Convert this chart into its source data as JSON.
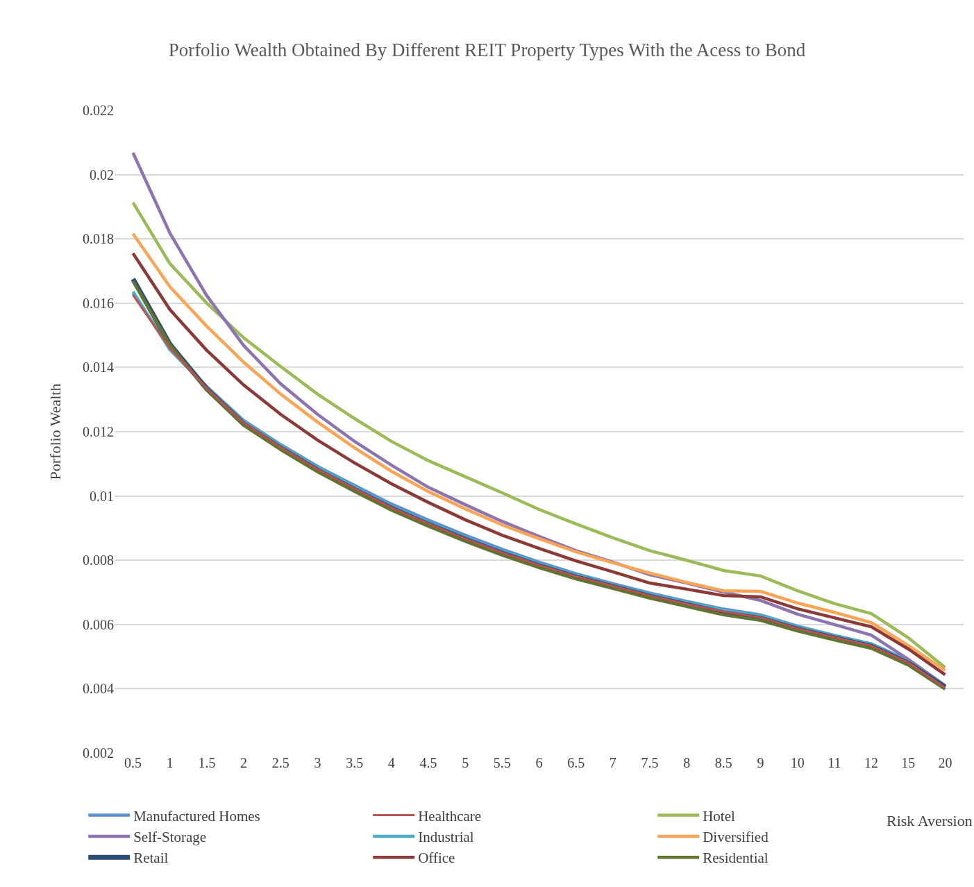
{
  "chart_data": {
    "type": "line",
    "title": "Porfolio Wealth Obtained By Different REIT Property Types With the Acess to Bond",
    "xlabel": "Risk Aversion",
    "ylabel": "Porfolio Wealth",
    "categories": [
      "0.5",
      "1",
      "1.5",
      "2",
      "2.5",
      "3",
      "3.5",
      "4",
      "4.5",
      "5",
      "5.5",
      "6",
      "6.5",
      "7",
      "7.5",
      "8",
      "8.5",
      "9",
      "10",
      "11",
      "12",
      "15",
      "20"
    ],
    "series": [
      {
        "name": "Manufactured Homes",
        "color": "#5b8fd0",
        "values": [
          0.0163,
          0.0146,
          0.0134,
          0.01235,
          0.0116,
          0.01092,
          0.01033,
          0.00975,
          0.00925,
          0.00878,
          0.00834,
          0.00794,
          0.00758,
          0.00727,
          0.00698,
          0.00672,
          0.00648,
          0.0063,
          0.00595,
          0.00566,
          0.0054,
          0.00488,
          0.0041
        ]
      },
      {
        "name": "Healthcare",
        "color": "#c0504d",
        "values": [
          0.01625,
          0.0146,
          0.01335,
          0.01228,
          0.01152,
          0.01083,
          0.01023,
          0.00964,
          0.00914,
          0.00867,
          0.00824,
          0.00785,
          0.0075,
          0.0072,
          0.0069,
          0.00664,
          0.0064,
          0.00622,
          0.00588,
          0.0056,
          0.00534,
          0.00482,
          0.00403
        ]
      },
      {
        "name": "Hotel",
        "color": "#9bbb59",
        "values": [
          0.01913,
          0.01723,
          0.016,
          0.01492,
          0.01403,
          0.01317,
          0.01241,
          0.0117,
          0.0111,
          0.0106,
          0.0101,
          0.00958,
          0.00913,
          0.0087,
          0.0083,
          0.008,
          0.00768,
          0.00751,
          0.00705,
          0.00665,
          0.00634,
          0.00559,
          0.00466
        ]
      },
      {
        "name": "Self-Storage",
        "color": "#8c74b0",
        "values": [
          0.02068,
          0.01818,
          0.01623,
          0.01468,
          0.01349,
          0.01254,
          0.0117,
          0.01096,
          0.01027,
          0.00973,
          0.00921,
          0.00874,
          0.0083,
          0.00794,
          0.00755,
          0.00729,
          0.00701,
          0.00675,
          0.00632,
          0.006,
          0.00567,
          0.00492,
          0.0041
        ]
      },
      {
        "name": "Industrial",
        "color": "#4bacc6",
        "values": [
          0.01636,
          0.01455,
          0.01338,
          0.01232,
          0.01157,
          0.01088,
          0.01028,
          0.00968,
          0.00918,
          0.00871,
          0.00828,
          0.00789,
          0.00754,
          0.00723,
          0.00694,
          0.00668,
          0.00644,
          0.00627,
          0.00592,
          0.00564,
          0.00538,
          0.00485,
          0.00408
        ]
      },
      {
        "name": "Diversified",
        "color": "#f9a555",
        "values": [
          0.01816,
          0.01651,
          0.01528,
          0.01416,
          0.01317,
          0.0123,
          0.0115,
          0.01077,
          0.01014,
          0.0096,
          0.0091,
          0.00867,
          0.00826,
          0.00792,
          0.0076,
          0.00731,
          0.00705,
          0.00703,
          0.00667,
          0.00638,
          0.00606,
          0.00535,
          0.00457
        ]
      },
      {
        "name": "Retail",
        "color": "#2c4d75",
        "values": [
          0.01675,
          0.01472,
          0.01333,
          0.01224,
          0.01149,
          0.0108,
          0.0102,
          0.00962,
          0.00912,
          0.00865,
          0.00822,
          0.00783,
          0.00748,
          0.00718,
          0.00688,
          0.00662,
          0.00636,
          0.00619,
          0.00586,
          0.00558,
          0.00532,
          0.0048,
          0.00405
        ]
      },
      {
        "name": "Office",
        "color": "#8b3a37",
        "values": [
          0.01755,
          0.0158,
          0.01453,
          0.01345,
          0.01254,
          0.01174,
          0.01103,
          0.01038,
          0.0098,
          0.00926,
          0.00878,
          0.00837,
          0.00798,
          0.00764,
          0.00729,
          0.0071,
          0.0069,
          0.00686,
          0.00649,
          0.00621,
          0.00593,
          0.00524,
          0.00444
        ]
      },
      {
        "name": "Residential",
        "color": "#5f7530",
        "values": [
          0.01669,
          0.0147,
          0.0133,
          0.0122,
          0.01144,
          0.01075,
          0.01014,
          0.00956,
          0.00906,
          0.00859,
          0.00816,
          0.00777,
          0.00742,
          0.00712,
          0.00682,
          0.00656,
          0.0063,
          0.00613,
          0.0058,
          0.00552,
          0.00526,
          0.00474,
          0.00399
        ]
      }
    ],
    "ylim": [
      0.002,
      0.022
    ],
    "yticks": [
      0.002,
      0.004,
      0.006,
      0.008,
      0.01,
      0.012,
      0.014,
      0.016,
      0.018,
      0.02,
      0.022
    ],
    "grid": "y",
    "legend": "bottom",
    "marker": "none",
    "line_style": "solid"
  }
}
